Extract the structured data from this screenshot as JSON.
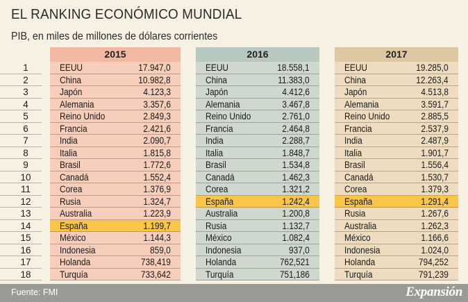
{
  "title": "EL RANKING ECONÓMICO MUNDIAL",
  "subtitle": "PIB, en miles de millones de dólares corrientes",
  "source": "Fuente: FMI",
  "brand": "Expansión",
  "colors": {
    "background": "#f7f1e4",
    "col_2015": "#f7cdbb",
    "col_2016": "#cfd8cf",
    "col_2017": "#eddcbf",
    "highlight": "#f9c64a",
    "footer": "#9a9b96"
  },
  "chart_data": {
    "type": "table",
    "title": "EL RANKING ECONÓMICO MUNDIAL",
    "subtitle": "PIB, en miles de millones de dólares corrientes",
    "ranks": [
      "1",
      "2",
      "3",
      "4",
      "5",
      "6",
      "7",
      "8",
      "9",
      "10",
      "11",
      "12",
      "13",
      "14",
      "15",
      "16",
      "17",
      "18"
    ],
    "highlight_country": "España",
    "years": [
      {
        "year": "2015",
        "rows": [
          {
            "country": "EEUU",
            "value": "17.947,0"
          },
          {
            "country": "China",
            "value": "10.982,8"
          },
          {
            "country": "Japón",
            "value": "4.123,3"
          },
          {
            "country": "Alemania",
            "value": "3.357,6"
          },
          {
            "country": "Reino Unido",
            "value": "2.849,3"
          },
          {
            "country": "Francia",
            "value": "2.421,6"
          },
          {
            "country": "India",
            "value": "2.090,7"
          },
          {
            "country": "Italia",
            "value": "1.815,8"
          },
          {
            "country": "Brasil",
            "value": "1.772,6"
          },
          {
            "country": "Canadá",
            "value": "1.552,4"
          },
          {
            "country": "Corea",
            "value": "1.376,9"
          },
          {
            "country": "Rusia",
            "value": "1.324,7"
          },
          {
            "country": "Australia",
            "value": "1.223,9"
          },
          {
            "country": "España",
            "value": "1.199,7"
          },
          {
            "country": "México",
            "value": "1.144,3"
          },
          {
            "country": "Indonesia",
            "value": "859,0"
          },
          {
            "country": "Holanda",
            "value": "738,419"
          },
          {
            "country": "Turquía",
            "value": "733,642"
          }
        ]
      },
      {
        "year": "2016",
        "rows": [
          {
            "country": "EEUU",
            "value": "18.558,1"
          },
          {
            "country": "China",
            "value": "11.383,0"
          },
          {
            "country": "Japón",
            "value": "4.412,6"
          },
          {
            "country": "Alemania",
            "value": "3.467,8"
          },
          {
            "country": "Reino Unido",
            "value": "2.761,0"
          },
          {
            "country": "Francia",
            "value": "2.464,8"
          },
          {
            "country": "India",
            "value": "2.288,7"
          },
          {
            "country": "Italia",
            "value": "1.848,7"
          },
          {
            "country": "Brasil",
            "value": "1.534,8"
          },
          {
            "country": "Canadá",
            "value": "1.462,3"
          },
          {
            "country": "Corea",
            "value": "1.321,2"
          },
          {
            "country": "España",
            "value": "1.242,4"
          },
          {
            "country": "Australia",
            "value": "1.200,8"
          },
          {
            "country": "Rusia",
            "value": "1.132,7"
          },
          {
            "country": "México",
            "value": "1.082,4"
          },
          {
            "country": "Indonesia",
            "value": "937,0"
          },
          {
            "country": "Holanda",
            "value": "762,521"
          },
          {
            "country": "Turquía",
            "value": "751,186"
          }
        ]
      },
      {
        "year": "2017",
        "rows": [
          {
            "country": "EEUU",
            "value": "19.285,0"
          },
          {
            "country": "China",
            "value": "12.263,4"
          },
          {
            "country": "Japón",
            "value": "4.513,8"
          },
          {
            "country": "Alemania",
            "value": "3.591,7"
          },
          {
            "country": "Reino Unido",
            "value": "2.885,5"
          },
          {
            "country": "Francia",
            "value": "2.537,9"
          },
          {
            "country": "India",
            "value": "2.487,9"
          },
          {
            "country": "Italia",
            "value": "1.901,7"
          },
          {
            "country": "Brasil",
            "value": "1.556,4"
          },
          {
            "country": "Canadá",
            "value": "1.530,7"
          },
          {
            "country": "Corea",
            "value": "1.379,3"
          },
          {
            "country": "España",
            "value": "1.291,4"
          },
          {
            "country": "Rusia",
            "value": "1.267,6"
          },
          {
            "country": "Australia",
            "value": "1.262,3"
          },
          {
            "country": "México",
            "value": "1.166,6"
          },
          {
            "country": "Indonesia",
            "value": "1.024,0"
          },
          {
            "country": "Holanda",
            "value": "794,252"
          },
          {
            "country": "Turquía",
            "value": "791,239"
          }
        ]
      }
    ]
  }
}
